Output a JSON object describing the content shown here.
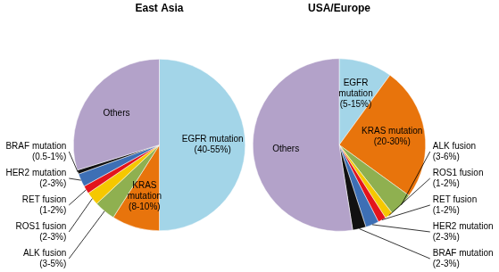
{
  "chart_data": [
    {
      "type": "pie",
      "title": "East Asia",
      "categories": [
        "EGFR mutation",
        "KRAS mutation",
        "ALK fusion",
        "ROS1 fusion",
        "RET fusion",
        "HER2 mutation",
        "BRAF mutation",
        "Others"
      ],
      "values": [
        50,
        9,
        4,
        2.5,
        1.5,
        2.5,
        0.75,
        29.75
      ],
      "value_labels": [
        "(40-55%)",
        "(8-10%)",
        "(3-5%)",
        "(2-3%)",
        "(1-2%)",
        "(2-3%)",
        "(0.5-1%)",
        null
      ],
      "colors": [
        "#a3d5e8",
        "#e8740c",
        "#8fb050",
        "#f5c800",
        "#e3141c",
        "#3d6fb5",
        "#111111",
        "#b3a2c9"
      ],
      "data_labels": true
    },
    {
      "type": "pie",
      "title": "USA/Europe",
      "categories": [
        "EGFR mutation",
        "KRAS mutation",
        "ALK fusion",
        "ROS1 fusion",
        "RET fusion",
        "HER2 mutation",
        "BRAF mutation",
        "Others"
      ],
      "values": [
        10,
        25,
        4.5,
        1.5,
        1.5,
        2.5,
        2.5,
        52.5
      ],
      "value_labels": [
        "(5-15%)",
        "(20-30%)",
        "(3-6%)",
        "(1-2%)",
        "(1-2%)",
        "(2-3%)",
        "(2-3%)",
        null
      ],
      "colors": [
        "#a3d5e8",
        "#e8740c",
        "#8fb050",
        "#f5c800",
        "#e3141c",
        "#3d6fb5",
        "#111111",
        "#b3a2c9"
      ],
      "data_labels": true
    }
  ]
}
